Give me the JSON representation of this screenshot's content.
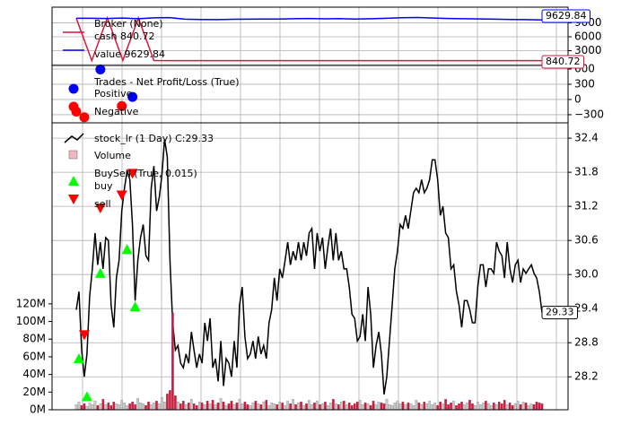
{
  "chart_data": [
    {
      "type": "line",
      "title": "Broker (None)",
      "ylim": [
        -200,
        12400
      ],
      "yticks": [
        0,
        3000,
        6000,
        9000
      ],
      "grid": true,
      "series": [
        {
          "name": "cash 840.72",
          "color": "#dc143c",
          "values": [
            10000,
            850,
            10100,
            900,
            10050,
            860,
            840.72,
            840.72,
            840.72,
            840.72,
            840.72,
            840.72,
            840.72,
            840.72,
            840.72,
            840.72,
            840.72,
            840.72,
            840.72,
            840.72,
            840.72,
            840.72,
            840.72,
            840.72,
            840.72,
            840.72,
            840.72,
            840.72,
            840.72,
            840.72,
            840.72
          ]
        },
        {
          "name": "value 9629.84",
          "color": "#0000ff",
          "values": [
            10000,
            10000,
            9950,
            10050,
            9900,
            10100,
            10150,
            9800,
            9750,
            9700,
            9780,
            9800,
            9850,
            9820,
            9900,
            9950,
            9880,
            9920,
            9850,
            9900,
            10000,
            10120,
            10180,
            10050,
            9950,
            9900,
            9870,
            9800,
            9750,
            9700,
            9629.84
          ]
        }
      ]
    },
    {
      "type": "scatter",
      "title": "Trades - Net Profit/Loss (True)",
      "ylim": [
        -460,
        670
      ],
      "yticks": [
        {
          "value": -300,
          "label": "−300"
        },
        0,
        300,
        600
      ],
      "grid": true,
      "series": [
        {
          "name": "Positive",
          "color": "#0000ff",
          "marker": "o",
          "x": [
            9,
            21
          ],
          "values": [
            590,
            50
          ]
        },
        {
          "name": "Negative",
          "color": "#ff0000",
          "marker": "o",
          "x": [
            0,
            3,
            17
          ],
          "values": [
            -240,
            -350,
            -130
          ]
        }
      ]
    },
    {
      "type": "line",
      "title": "stock_lr (1 Day) C:29.33",
      "signals_title": "BuySell (True, 0.015)",
      "ylim": [
        27.62,
        32.67
      ],
      "yticks": [
        28.2,
        28.8,
        29.4,
        {
          "value": 30,
          "label": "30.0"
        },
        30.6,
        31.2,
        31.8,
        32.4
      ],
      "y2lim": [
        0,
        325
      ],
      "y2ticks": [
        {
          "value": 0,
          "label": "0M"
        },
        {
          "value": 20,
          "label": "20M"
        },
        {
          "value": 40,
          "label": "40M"
        },
        {
          "value": 60,
          "label": "60M"
        },
        {
          "value": 80,
          "label": "80M"
        },
        {
          "value": 100,
          "label": "100M"
        },
        {
          "value": 120,
          "label": "120M"
        }
      ],
      "grid": true,
      "series": [
        {
          "name": "stock_lr (1 Day) C:29.33",
          "type": "line",
          "color": "#000000",
          "values": [
            29.38,
            29.7,
            28.67,
            28.2,
            28.6,
            29.62,
            30.1,
            30.73,
            30.17,
            30.57,
            30.1,
            30.65,
            30.6,
            29.46,
            29.07,
            29.94,
            30.25,
            31.12,
            31.52,
            31.83,
            31.67,
            30.88,
            29.54,
            30.25,
            30.65,
            30.88,
            30.33,
            30.25,
            31.52,
            31.91,
            31.12,
            31.36,
            31.75,
            32.38,
            32.07,
            30.25,
            29.15,
            28.67,
            28.75,
            28.44,
            28.36,
            28.6,
            28.44,
            28.99,
            28.67,
            28.36,
            28.6,
            28.44,
            29.15,
            28.83,
            29.23,
            28.36,
            28.52,
            28.12,
            28.83,
            28.04,
            28.52,
            28.44,
            28.2,
            28.83,
            28.36,
            29.46,
            29.78,
            28.91,
            28.52,
            28.6,
            28.83,
            28.52,
            28.91,
            28.6,
            28.75,
            28.52,
            29.15,
            29.38,
            29.94,
            29.54,
            30.1,
            29.94,
            30.25,
            30.57,
            30.17,
            30.41,
            30.25,
            30.57,
            30.25,
            30.57,
            30.33,
            30.73,
            30.81,
            30.1,
            30.73,
            30.41,
            30.65,
            30.1,
            30.49,
            30.81,
            30.25,
            30.73,
            30.25,
            30.41,
            30.1,
            30.1,
            29.78,
            29.3,
            29.23,
            28.83,
            28.91,
            29.3,
            28.83,
            29.78,
            29.3,
            28.36,
            28.75,
            28.99,
            28.6,
            27.89,
            28.2,
            28.83,
            29.46,
            30.1,
            30.41,
            30.88,
            30.81,
            31.04,
            30.81,
            31.12,
            31.44,
            31.52,
            31.44,
            31.67,
            31.44,
            31.52,
            31.67,
            32.02,
            32.02,
            31.67,
            31.04,
            31.2,
            30.73,
            30.65,
            30.1,
            30.17,
            29.7,
            29.46,
            29.07,
            29.54,
            29.54,
            29.38,
            29.15,
            29.15,
            29.78,
            30.17,
            30.17,
            29.78,
            30.1,
            30.1,
            30.02,
            30.57,
            30.41,
            30.33,
            29.94,
            30.57,
            30.1,
            29.86,
            30.17,
            30.25,
            29.86,
            30.1,
            30.02,
            30.1,
            30.17,
            30.02,
            29.94,
            29.7,
            29.33
          ]
        },
        {
          "name": "Volume",
          "type": "bar",
          "axis": "y2",
          "color": "#dc143c",
          "alt_color": "#c8c8c8",
          "values": [
            6,
            9,
            5,
            7,
            4,
            8,
            6,
            10,
            5,
            7,
            12,
            6,
            8,
            5,
            9,
            7,
            6,
            11,
            8,
            5,
            7,
            9,
            6,
            13,
            8,
            7,
            5,
            9,
            6,
            8,
            10,
            7,
            14,
            9,
            18,
            22,
            110,
            16,
            9,
            7,
            10,
            6,
            8,
            12,
            7,
            5,
            9,
            8,
            6,
            10,
            7,
            11,
            6,
            8,
            13,
            9,
            5,
            7,
            10,
            6,
            8,
            12,
            7,
            9,
            6,
            5,
            8,
            10,
            7,
            6,
            9,
            11,
            5,
            8,
            7,
            6,
            9,
            8,
            5,
            10,
            7,
            12,
            6,
            8,
            9,
            5,
            7,
            11,
            6,
            8,
            10,
            6,
            7,
            9,
            5,
            8,
            12,
            7,
            6,
            9,
            10,
            6,
            8,
            5,
            7,
            9,
            11,
            6,
            8,
            7,
            5,
            10,
            6,
            9,
            8,
            7,
            12,
            6,
            5,
            8,
            10,
            7,
            9,
            6,
            8,
            7,
            5,
            11,
            8,
            6,
            9,
            7,
            10,
            6,
            8,
            5,
            9,
            7,
            12,
            6,
            8,
            10,
            5,
            7,
            9,
            6,
            8,
            11,
            7,
            5,
            9,
            6,
            8,
            10,
            7,
            5,
            8,
            6,
            9,
            7,
            11,
            6,
            8,
            5,
            7,
            10,
            6,
            9,
            8,
            5,
            7,
            6,
            9,
            8,
            7
          ]
        },
        {
          "name": "buy",
          "type": "scatter",
          "marker": "^",
          "color": "#00ff00",
          "x": [
            1,
            4,
            9,
            19,
            22
          ],
          "values": [
            28.52,
            27.85,
            30.02,
            30.44,
            29.43
          ]
        },
        {
          "name": "sell",
          "type": "scatter",
          "marker": "v",
          "color": "#ff0000",
          "x": [
            3,
            9,
            17,
            21
          ],
          "values": [
            28.94,
            31.17,
            31.4,
            31.78
          ]
        }
      ]
    }
  ]
}
